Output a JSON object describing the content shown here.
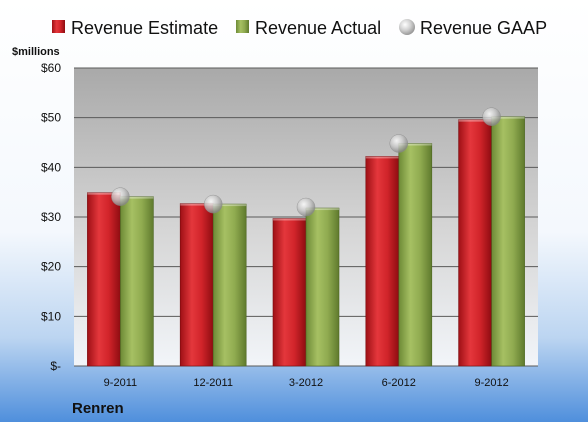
{
  "chart_data": {
    "type": "bar",
    "unit_label": "$millions",
    "company": "Renren",
    "categories": [
      "9-2011",
      "12-2011",
      "3-2012",
      "6-2012",
      "9-2012"
    ],
    "series": [
      {
        "name": "Revenue Estimate",
        "kind": "bar",
        "color": "#c8202a",
        "values": [
          34.9,
          32.7,
          29.7,
          42.2,
          49.6
        ]
      },
      {
        "name": "Revenue Actual",
        "kind": "bar",
        "color": "#8ea84c",
        "values": [
          34.1,
          32.6,
          31.8,
          44.8,
          50.2
        ]
      },
      {
        "name": "Revenue GAAP",
        "kind": "marker",
        "color": "#b8b8b8",
        "values": [
          34.1,
          32.6,
          32.0,
          44.8,
          50.2
        ]
      }
    ],
    "ylim": [
      0,
      60
    ],
    "yticks": [
      0,
      10,
      20,
      30,
      40,
      50,
      60
    ],
    "ytick_labels": [
      "$-",
      "$10",
      "$20",
      "$30",
      "$40",
      "$50",
      "$60"
    ],
    "grid": true,
    "legend_position": "top"
  }
}
